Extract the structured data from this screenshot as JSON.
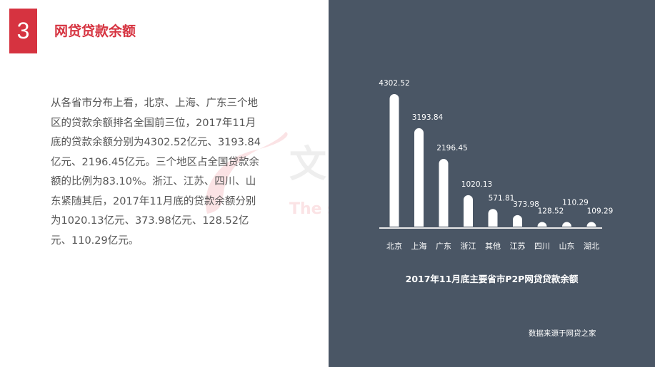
{
  "header": {
    "number": "3",
    "title": "网贷贷款余额"
  },
  "watermark": {
    "text": "文",
    "subtext": "The s"
  },
  "body_text": "从各省市分布上看，北京、上海、广东三个地区的贷款余额排名全国前三位，2017年11月底的贷款余额分别为4302.52亿元、3193.84亿元、2196.45亿元。三个地区占全国贷款余额的比例为83.10%。浙江、江苏、四川、山东紧随其后，2017年11月底的贷款余额分别为1020.13亿元、373.98亿元、128.52亿元、110.29亿元。",
  "colors": {
    "accent": "#d63340",
    "panel": "#4a5665",
    "bar": "#ffffff"
  },
  "chart_data": {
    "type": "bar",
    "title": "2017年11月底主要省市P2P网贷贷款余额",
    "categories": [
      "北京",
      "上海",
      "广东",
      "浙江",
      "其他",
      "江苏",
      "四川",
      "山东",
      "湖北"
    ],
    "values": [
      4302.52,
      3193.84,
      2196.45,
      1020.13,
      571.81,
      373.98,
      128.52,
      110.29,
      109.29
    ],
    "value_labels": [
      "4302.52",
      "3193.84",
      "2196.45",
      "1020.13",
      "571.81",
      "373.98",
      "128.52",
      "110.29",
      "109.29"
    ],
    "grid": false,
    "legend": "none"
  },
  "source": "数据来源于网贷之家"
}
